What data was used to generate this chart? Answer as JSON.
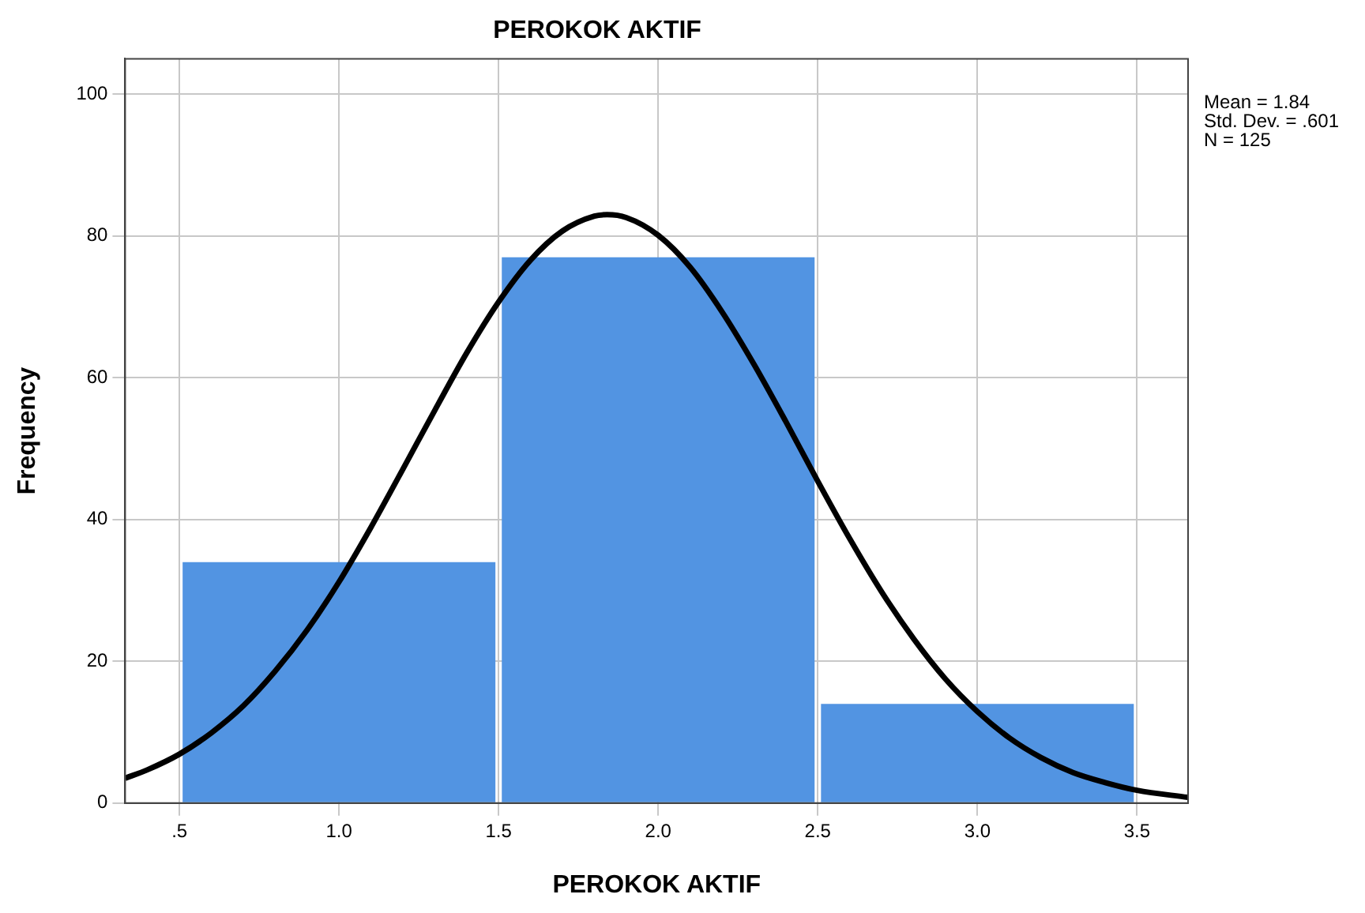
{
  "chart_data": {
    "type": "histogram",
    "title": "PEROKOK AKTIF",
    "xlabel": "PEROKOK AKTIF",
    "ylabel": "Frequency",
    "bins": [
      0.5,
      1.5,
      2.5,
      3.5
    ],
    "values": [
      34,
      77,
      14
    ],
    "color": "#5294e2",
    "series": [
      {
        "type": "line",
        "color": "#000000",
        "x": [
          0.33,
          0.4,
          0.5,
          0.6,
          0.7,
          0.8,
          0.9,
          1.0,
          1.1,
          1.2,
          1.3,
          1.4,
          1.5,
          1.6,
          1.7,
          1.8,
          1.84,
          1.9,
          2.0,
          2.1,
          2.2,
          2.3,
          2.4,
          2.5,
          2.6,
          2.7,
          2.8,
          2.9,
          3.0,
          3.1,
          3.2,
          3.3,
          3.4,
          3.5,
          3.66
        ],
        "values": [
          3.5,
          4.7,
          6.9,
          9.9,
          13.7,
          18.6,
          24.4,
          31.2,
          38.9,
          47.1,
          55.4,
          63.5,
          70.7,
          76.6,
          80.7,
          82.8,
          83.0,
          82.6,
          80.1,
          75.6,
          69.3,
          61.9,
          53.8,
          45.4,
          37.3,
          29.8,
          23.2,
          17.5,
          12.9,
          9.2,
          6.4,
          4.3,
          2.9,
          1.8,
          0.8
        ]
      }
    ],
    "xlim": [
      0.33,
      3.66
    ],
    "xticks": [
      {
        "value": 0.5,
        "label": ".5"
      },
      {
        "value": 1,
        "label": "1.0"
      },
      {
        "value": 1.5,
        "label": "1.5"
      },
      {
        "value": 2,
        "label": "2.0"
      },
      {
        "value": 2.5,
        "label": "2.5"
      },
      {
        "value": 3,
        "label": "3.0"
      },
      {
        "value": 3.5,
        "label": "3.5"
      }
    ],
    "ylim": [
      0,
      105
    ],
    "yticks": [
      0,
      20,
      40,
      60,
      80,
      100
    ],
    "grid": true,
    "marker": "none",
    "annotations": [
      "Mean = 1.84",
      "Std. Dev. = .601",
      "N = 125"
    ]
  }
}
